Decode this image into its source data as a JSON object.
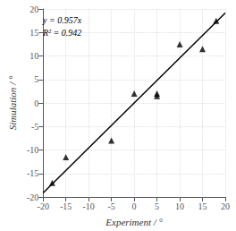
{
  "chart_data": {
    "type": "scatter",
    "xlabel": "Experiment / °",
    "ylabel": "Simulation / °",
    "xlim": [
      -20,
      20
    ],
    "ylim": [
      -20,
      20
    ],
    "xticks": [
      -20,
      -15,
      -10,
      -5,
      0,
      5,
      10,
      15,
      20
    ],
    "yticks": [
      -20,
      -15,
      -10,
      -5,
      0,
      5,
      10,
      15,
      20
    ],
    "grid": true,
    "annotations": [
      "y = 0.957x",
      "R² = 0.942"
    ],
    "series": [
      {
        "type": "scatter",
        "marker": "triangle",
        "color": "#000000",
        "x": [
          -18,
          -15,
          -5,
          0,
          5,
          5,
          10,
          15,
          18
        ],
        "values": [
          -17,
          -11.5,
          -8,
          2,
          2,
          1.5,
          12.5,
          11.5,
          17.5
        ]
      },
      {
        "type": "line",
        "color": "#000000",
        "x": [
          -20,
          20
        ],
        "values": [
          -19.14,
          19.14
        ]
      }
    ]
  }
}
